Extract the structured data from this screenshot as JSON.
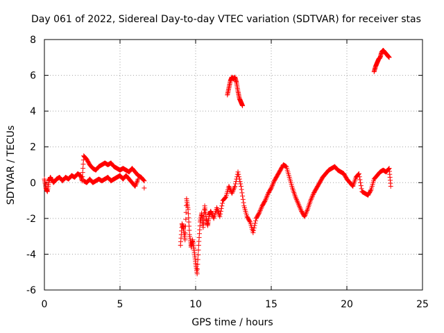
{
  "chart_data": {
    "type": "scatter",
    "title": "Day 061 of 2022, Sidereal Day-to-day VTEC variation (SDTVAR) for receiver stas",
    "xlabel": "GPS time / hours",
    "ylabel": "SDTVAR / TECUs",
    "xlim": [
      0,
      25
    ],
    "ylim": [
      -6,
      8
    ],
    "xticks": [
      "0",
      "5",
      "10",
      "15",
      "20",
      "25"
    ],
    "yticks": [
      "-6",
      "-4",
      "-2",
      "0",
      "2",
      "4",
      "6",
      "8"
    ],
    "grid": true,
    "marker": "+",
    "series_color": "#ff0000",
    "series": [
      {
        "name": "SDTVAR",
        "points": [
          [
            0.0,
            0.2
          ],
          [
            0.1,
            -0.3
          ],
          [
            0.2,
            -0.5
          ],
          [
            0.3,
            0.1
          ],
          [
            0.4,
            0.3
          ],
          [
            0.6,
            0.0
          ],
          [
            0.8,
            0.2
          ],
          [
            1.0,
            0.3
          ],
          [
            1.2,
            0.1
          ],
          [
            1.4,
            0.3
          ],
          [
            1.6,
            0.2
          ],
          [
            1.8,
            0.4
          ],
          [
            2.0,
            0.3
          ],
          [
            2.2,
            0.5
          ],
          [
            2.4,
            0.4
          ],
          [
            2.5,
            0.1
          ],
          [
            2.6,
            1.5
          ],
          [
            2.8,
            1.3
          ],
          [
            3.0,
            1.0
          ],
          [
            3.2,
            0.8
          ],
          [
            3.4,
            0.7
          ],
          [
            3.6,
            0.9
          ],
          [
            3.8,
            1.0
          ],
          [
            4.0,
            1.1
          ],
          [
            4.2,
            1.0
          ],
          [
            4.4,
            1.1
          ],
          [
            4.6,
            0.9
          ],
          [
            4.8,
            0.8
          ],
          [
            5.0,
            0.7
          ],
          [
            5.2,
            0.8
          ],
          [
            5.4,
            0.7
          ],
          [
            5.6,
            0.6
          ],
          [
            5.8,
            0.8
          ],
          [
            6.0,
            0.6
          ],
          [
            6.2,
            0.4
          ],
          [
            6.4,
            0.3
          ],
          [
            6.6,
            0.1
          ],
          [
            6.6,
            -0.3
          ],
          [
            2.6,
            0.1
          ],
          [
            2.8,
            0.0
          ],
          [
            3.0,
            0.2
          ],
          [
            3.2,
            0.0
          ],
          [
            3.4,
            0.1
          ],
          [
            3.6,
            0.2
          ],
          [
            3.8,
            0.1
          ],
          [
            4.0,
            0.2
          ],
          [
            4.2,
            0.3
          ],
          [
            4.4,
            0.1
          ],
          [
            4.6,
            0.2
          ],
          [
            4.8,
            0.3
          ],
          [
            5.0,
            0.4
          ],
          [
            5.2,
            0.2
          ],
          [
            5.4,
            0.4
          ],
          [
            5.6,
            0.2
          ],
          [
            5.8,
            0.0
          ],
          [
            6.0,
            -0.2
          ],
          [
            6.2,
            0.2
          ],
          [
            9.0,
            -3.5
          ],
          [
            9.1,
            -2.3
          ],
          [
            9.2,
            -2.6
          ],
          [
            9.3,
            -3.2
          ],
          [
            9.4,
            -0.9
          ],
          [
            9.5,
            -1.5
          ],
          [
            9.6,
            -2.9
          ],
          [
            9.7,
            -3.6
          ],
          [
            9.8,
            -3.2
          ],
          [
            9.9,
            -3.8
          ],
          [
            10.0,
            -4.5
          ],
          [
            10.1,
            -5.1
          ],
          [
            10.2,
            -3.5
          ],
          [
            10.3,
            -2.2
          ],
          [
            10.4,
            -1.7
          ],
          [
            10.5,
            -2.5
          ],
          [
            10.6,
            -1.3
          ],
          [
            10.7,
            -2.0
          ],
          [
            10.8,
            -2.4
          ],
          [
            10.9,
            -1.8
          ],
          [
            11.0,
            -1.6
          ],
          [
            11.2,
            -2.0
          ],
          [
            11.4,
            -1.4
          ],
          [
            11.6,
            -1.9
          ],
          [
            11.8,
            -1.0
          ],
          [
            12.0,
            -0.8
          ],
          [
            12.2,
            -0.2
          ],
          [
            12.4,
            -0.6
          ],
          [
            12.6,
            -0.2
          ],
          [
            12.8,
            0.6
          ],
          [
            13.0,
            -0.2
          ],
          [
            13.2,
            -1.3
          ],
          [
            13.4,
            -1.9
          ],
          [
            13.6,
            -2.2
          ],
          [
            13.8,
            -2.8
          ],
          [
            14.0,
            -2.0
          ],
          [
            14.2,
            -1.7
          ],
          [
            14.4,
            -1.3
          ],
          [
            14.6,
            -1.0
          ],
          [
            14.8,
            -0.6
          ],
          [
            15.0,
            -0.3
          ],
          [
            15.2,
            0.1
          ],
          [
            15.4,
            0.4
          ],
          [
            15.6,
            0.7
          ],
          [
            15.8,
            1.0
          ],
          [
            16.0,
            0.9
          ],
          [
            16.2,
            0.3
          ],
          [
            16.4,
            -0.3
          ],
          [
            16.6,
            -0.8
          ],
          [
            16.8,
            -1.2
          ],
          [
            17.0,
            -1.6
          ],
          [
            17.2,
            -1.9
          ],
          [
            17.4,
            -1.5
          ],
          [
            17.6,
            -1.0
          ],
          [
            17.8,
            -0.6
          ],
          [
            18.0,
            -0.3
          ],
          [
            18.2,
            0.0
          ],
          [
            18.4,
            0.3
          ],
          [
            18.6,
            0.5
          ],
          [
            18.8,
            0.7
          ],
          [
            19.0,
            0.8
          ],
          [
            19.2,
            0.9
          ],
          [
            19.4,
            0.7
          ],
          [
            19.6,
            0.6
          ],
          [
            19.8,
            0.5
          ],
          [
            20.0,
            0.2
          ],
          [
            20.2,
            0.0
          ],
          [
            20.4,
            -0.2
          ],
          [
            20.6,
            0.3
          ],
          [
            20.8,
            0.5
          ],
          [
            21.0,
            -0.5
          ],
          [
            21.2,
            -0.6
          ],
          [
            21.4,
            -0.7
          ],
          [
            21.6,
            -0.4
          ],
          [
            21.8,
            0.2
          ],
          [
            22.0,
            0.4
          ],
          [
            22.2,
            0.6
          ],
          [
            22.4,
            0.7
          ],
          [
            22.6,
            0.6
          ],
          [
            22.8,
            0.8
          ],
          [
            22.9,
            -0.2
          ],
          [
            12.1,
            4.9
          ],
          [
            12.2,
            5.3
          ],
          [
            12.3,
            5.7
          ],
          [
            12.4,
            5.9
          ],
          [
            12.5,
            5.8
          ],
          [
            12.6,
            5.9
          ],
          [
            12.7,
            5.6
          ],
          [
            12.8,
            5.1
          ],
          [
            12.9,
            4.7
          ],
          [
            13.0,
            4.5
          ],
          [
            13.1,
            4.3
          ],
          [
            21.8,
            6.2
          ],
          [
            21.9,
            6.5
          ],
          [
            22.0,
            6.7
          ],
          [
            22.1,
            6.9
          ],
          [
            22.2,
            7.0
          ],
          [
            22.3,
            7.3
          ],
          [
            22.4,
            7.4
          ],
          [
            22.5,
            7.3
          ],
          [
            22.6,
            7.2
          ],
          [
            22.7,
            7.1
          ],
          [
            22.8,
            7.0
          ]
        ]
      }
    ]
  }
}
